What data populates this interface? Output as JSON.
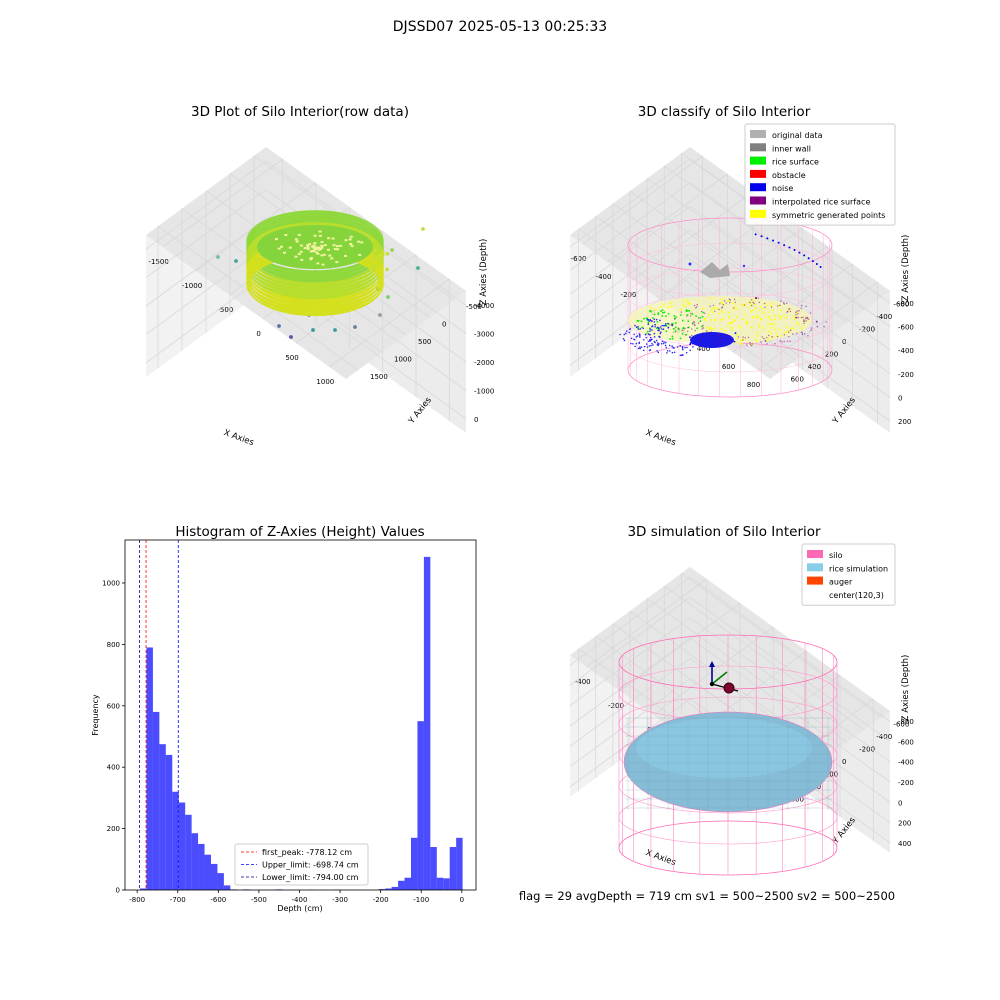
{
  "suptitle": "DJSSD07 2025-05-13 00:25:33",
  "footer": "flag = 29  avgDepth = 719 cm  sv1 = 500~2500  sv2 = 500~2500",
  "chart_data": [
    {
      "id": "raw",
      "type": "scatter",
      "title": "3D Plot of Silo Interior(row data)",
      "xlabel": "X Axies",
      "ylabel": "Y Axies",
      "zlabel": "Z Axies (Depth)",
      "x_ticks": [
        "-1500",
        "-1000",
        "-500",
        "0",
        "500",
        "1000"
      ],
      "y_ticks": [
        "-500",
        "0",
        "500",
        "1000",
        "1500"
      ],
      "z_ticks": [
        "0",
        "-1000",
        "-2000",
        "-3000",
        "-4000"
      ],
      "xlim": [
        -1600,
        1050
      ],
      "ylim": [
        -700,
        1700
      ],
      "zlim": [
        -4400,
        200
      ]
    },
    {
      "id": "classify",
      "type": "scatter",
      "title": "3D classify of Silo Interior",
      "xlabel": "X Axies",
      "ylabel": "Y Axies",
      "zlabel": "Z Axies (Depth)",
      "x_ticks": [
        "-600",
        "-400",
        "-200",
        "0",
        "200",
        "400",
        "600",
        "800"
      ],
      "y_ticks": [
        "-600",
        "-400",
        "-200",
        "0",
        "200",
        "400",
        "600"
      ],
      "z_ticks": [
        "200",
        "0",
        "-200",
        "-400",
        "-600",
        "-800"
      ],
      "legend_position": "top-right",
      "legend": [
        {
          "label": "original data",
          "color": "#b0b0b0"
        },
        {
          "label": "inner wall",
          "color": "#808080"
        },
        {
          "label": "rice surface",
          "color": "#00ee00"
        },
        {
          "label": "obstacle",
          "color": "#ff0000"
        },
        {
          "label": "noise",
          "color": "#0000ee"
        },
        {
          "label": "interpolated rice surface",
          "color": "#800080"
        },
        {
          "label": "symmetric generated points",
          "color": "#ffff00"
        }
      ]
    },
    {
      "id": "hist",
      "type": "bar",
      "title": "Histogram of Z-Axies (Height) Values",
      "xlabel": "Depth (cm)",
      "ylabel": "Frequency",
      "xlim": [
        -830,
        35
      ],
      "ylim": [
        0,
        1140
      ],
      "x_ticks": [
        -800,
        -700,
        -600,
        -500,
        -400,
        -300,
        -200,
        -100,
        0
      ],
      "y_ticks": [
        0,
        200,
        400,
        600,
        800,
        1000
      ],
      "bar_color": "#0000ff",
      "bins": [
        {
          "x": -793,
          "w": 15.9,
          "v": 5
        },
        {
          "x": -777.1,
          "w": 15.9,
          "v": 790
        },
        {
          "x": -761.2,
          "w": 15.9,
          "v": 580
        },
        {
          "x": -745.3,
          "w": 15.9,
          "v": 475
        },
        {
          "x": -729.4,
          "w": 15.9,
          "v": 440
        },
        {
          "x": -713.5,
          "w": 15.9,
          "v": 320
        },
        {
          "x": -697.6,
          "w": 15.9,
          "v": 285
        },
        {
          "x": -681.7,
          "w": 15.9,
          "v": 245
        },
        {
          "x": -665.8,
          "w": 15.9,
          "v": 185
        },
        {
          "x": -649.9,
          "w": 15.9,
          "v": 150
        },
        {
          "x": -634,
          "w": 15.9,
          "v": 115
        },
        {
          "x": -618.1,
          "w": 15.9,
          "v": 85
        },
        {
          "x": -602.2,
          "w": 15.9,
          "v": 55
        },
        {
          "x": -586.3,
          "w": 15.9,
          "v": 15
        },
        {
          "x": -570.4,
          "w": 15.9,
          "v": 2
        },
        {
          "x": -538.6,
          "w": 15.9,
          "v": 2
        },
        {
          "x": -459.1,
          "w": 15.9,
          "v": 2
        },
        {
          "x": -379.6,
          "w": 15.9,
          "v": 1
        },
        {
          "x": -316,
          "w": 15.9,
          "v": 1
        },
        {
          "x": -204.7,
          "w": 15.9,
          "v": 3
        },
        {
          "x": -188.8,
          "w": 15.9,
          "v": 5
        },
        {
          "x": -172.9,
          "w": 15.9,
          "v": 10
        },
        {
          "x": -157,
          "w": 15.9,
          "v": 30
        },
        {
          "x": -141.1,
          "w": 15.9,
          "v": 40
        },
        {
          "x": -125.2,
          "w": 15.9,
          "v": 170
        },
        {
          "x": -109.3,
          "w": 15.9,
          "v": 550
        },
        {
          "x": -93.4,
          "w": 15.9,
          "v": 1085
        },
        {
          "x": -77.5,
          "w": 15.9,
          "v": 140
        },
        {
          "x": -61.6,
          "w": 15.9,
          "v": 40
        },
        {
          "x": -45.7,
          "w": 15.9,
          "v": 38
        },
        {
          "x": -29.8,
          "w": 15.9,
          "v": 140
        },
        {
          "x": -13.9,
          "w": 15.9,
          "v": 170
        }
      ],
      "vlines": [
        {
          "label": "first_peak: -778.12 cm",
          "x": -778.12,
          "color": "#ff0000"
        },
        {
          "label": "Upper_limit: -698.74 cm",
          "x": -698.74,
          "color": "#0000ff"
        },
        {
          "label": "Lower_limit: -794.00 cm",
          "x": -794.0,
          "color": "#00008b"
        }
      ],
      "legend_position": "lower-center"
    },
    {
      "id": "sim",
      "type": "scatter",
      "title": "3D simulation of Silo Interior",
      "xlabel": "X Axies",
      "ylabel": "Y Axies",
      "zlabel": "Z Axies (Depth)",
      "x_ticks": [
        "-400",
        "-200",
        "0",
        "200",
        "400",
        "600"
      ],
      "y_ticks": [
        "-600",
        "-400",
        "-200",
        "0",
        "200",
        "400",
        "600"
      ],
      "z_ticks": [
        "400",
        "200",
        "0",
        "-200",
        "-400",
        "-600",
        "-800"
      ],
      "legend_position": "top-right",
      "legend": [
        {
          "label": "silo",
          "color": "#ff69b4"
        },
        {
          "label": "rice simulation",
          "color": "#87ceeb"
        },
        {
          "label": "auger",
          "color": "#ff4500"
        },
        {
          "label": "center(120,3)",
          "color": "none"
        }
      ]
    }
  ]
}
